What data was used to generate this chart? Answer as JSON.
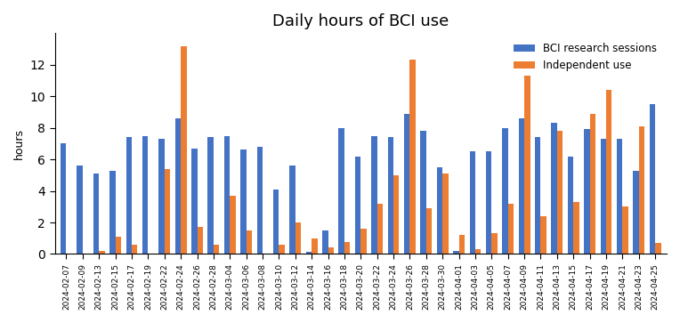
{
  "title": "Daily hours of BCI use",
  "ylabel": "hours",
  "dates": [
    "2024-02-07",
    "2024-02-09",
    "2024-02-13",
    "2024-02-15",
    "2024-02-17",
    "2024-02-19",
    "2024-02-22",
    "2024-02-24",
    "2024-02-26",
    "2024-02-28",
    "2024-03-04",
    "2024-03-06",
    "2024-03-08",
    "2024-03-10",
    "2024-03-12",
    "2024-03-14",
    "2024-03-16",
    "2024-03-18",
    "2024-03-20",
    "2024-03-22",
    "2024-03-24",
    "2024-03-26",
    "2024-03-28",
    "2024-03-30",
    "2024-04-01",
    "2024-04-03",
    "2024-04-05",
    "2024-04-07",
    "2024-04-09",
    "2024-04-11",
    "2024-04-13",
    "2024-04-15",
    "2024-04-17",
    "2024-04-19",
    "2024-04-21",
    "2024-04-23",
    "2024-04-25"
  ],
  "bci_research": [
    7.0,
    5.6,
    5.1,
    5.3,
    7.4,
    7.5,
    7.3,
    8.6,
    6.7,
    7.4,
    7.5,
    6.6,
    6.8,
    4.1,
    5.6,
    0.15,
    1.5,
    8.0,
    6.2,
    7.5,
    7.4,
    8.9,
    7.8,
    5.5,
    0.2,
    6.5,
    6.5,
    8.0,
    8.6,
    7.4,
    8.3,
    6.2,
    7.9,
    7.3,
    7.3,
    5.3,
    9.5
  ],
  "independent": [
    0.0,
    0.0,
    0.2,
    1.1,
    0.6,
    0.0,
    5.4,
    13.2,
    1.7,
    0.6,
    3.7,
    1.5,
    0.0,
    0.6,
    2.0,
    1.0,
    0.4,
    0.75,
    1.6,
    3.2,
    5.0,
    12.3,
    2.9,
    5.1,
    1.2,
    0.3,
    1.3,
    3.2,
    11.3,
    2.4,
    7.8,
    3.3,
    8.9,
    10.4,
    3.0,
    8.1,
    0.7
  ],
  "bci_color": "#4472c4",
  "ind_color": "#ed7d31",
  "legend_bci": "BCI research sessions",
  "legend_ind": "Independent use",
  "bar_width": 0.35,
  "ylim": [
    0,
    14
  ],
  "yticks": [
    0,
    2,
    4,
    6,
    8,
    10,
    12
  ],
  "title_fontsize": 13,
  "tick_fontsize": 6.5,
  "ylabel_fontsize": 9
}
